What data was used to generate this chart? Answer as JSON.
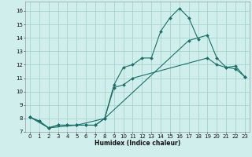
{
  "bg_color": "#d0eeec",
  "grid_color": "#a8d4d0",
  "line_color": "#1a7068",
  "marker": "D",
  "markersize": 2.0,
  "linewidth": 0.8,
  "xlabel": "Humidex (Indice chaleur)",
  "xlim": [
    -0.5,
    23.5
  ],
  "ylim": [
    7.0,
    16.7
  ],
  "yticks": [
    7,
    8,
    9,
    10,
    11,
    12,
    13,
    14,
    15,
    16
  ],
  "xticks": [
    0,
    1,
    2,
    3,
    4,
    5,
    6,
    7,
    8,
    9,
    10,
    11,
    12,
    13,
    14,
    15,
    16,
    17,
    18,
    19,
    20,
    21,
    22,
    23
  ],
  "s1_x": [
    0,
    1,
    2,
    3,
    4,
    5,
    6,
    7,
    8,
    9,
    10,
    11,
    12,
    13,
    14,
    15,
    16,
    17,
    18
  ],
  "s1_y": [
    8.1,
    7.8,
    7.3,
    7.5,
    7.5,
    7.5,
    7.5,
    7.5,
    8.0,
    10.5,
    11.8,
    12.0,
    12.5,
    12.5,
    14.5,
    15.5,
    16.2,
    15.5,
    13.9
  ],
  "s2_x": [
    0,
    1,
    2,
    3,
    4,
    5,
    6,
    7,
    8,
    9,
    10,
    11,
    19,
    20,
    21,
    22,
    23
  ],
  "s2_y": [
    8.1,
    7.8,
    7.3,
    7.5,
    7.5,
    7.5,
    7.5,
    7.5,
    8.0,
    10.3,
    10.5,
    11.0,
    12.5,
    12.0,
    11.8,
    11.9,
    11.1
  ],
  "s3_x": [
    0,
    2,
    5,
    8,
    17,
    19,
    20,
    21,
    22,
    23
  ],
  "s3_y": [
    8.1,
    7.3,
    7.5,
    8.0,
    13.8,
    14.2,
    12.5,
    11.8,
    11.7,
    11.1
  ],
  "xlabel_fontsize": 5.5,
  "tick_fontsize": 5.0
}
